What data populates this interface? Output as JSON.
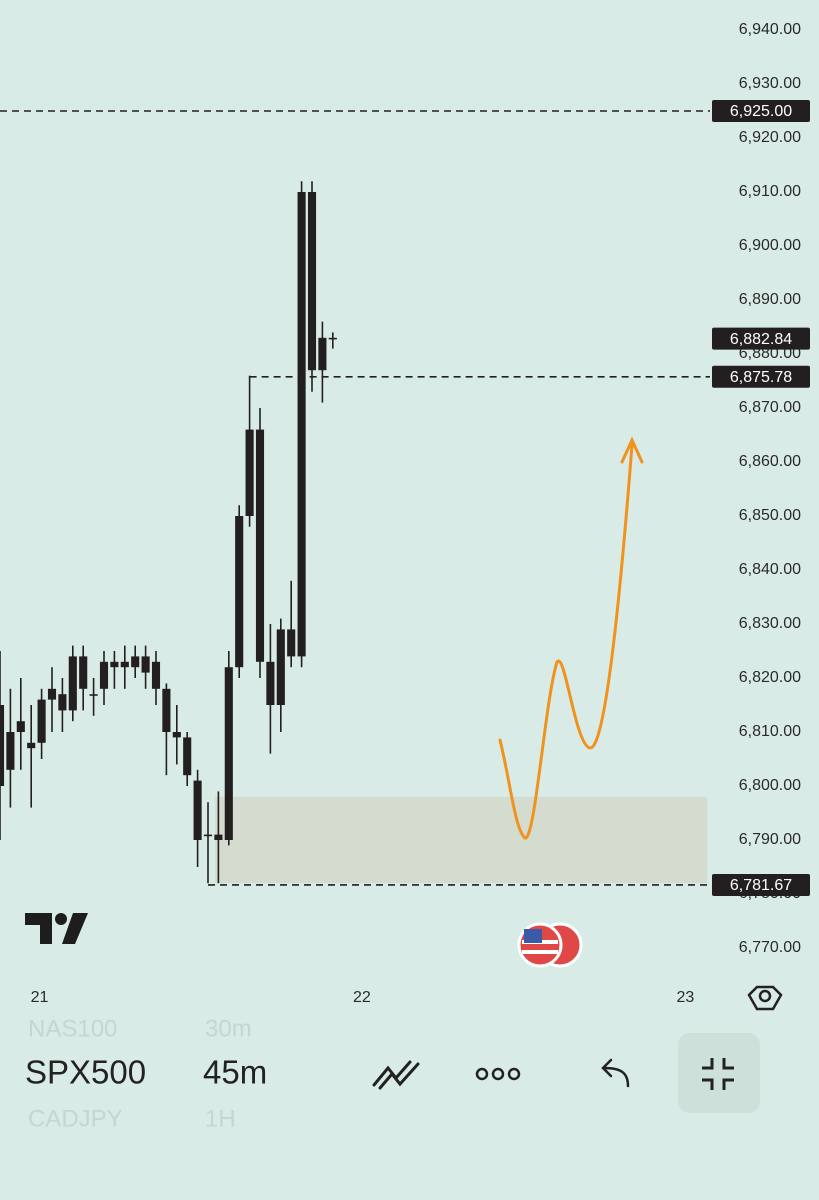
{
  "chart_data": {
    "type": "candlestick",
    "color": "#231f20",
    "x": [
      0,
      1,
      2,
      3,
      4,
      5,
      6,
      7,
      8,
      9,
      10,
      11,
      12,
      13,
      14,
      15,
      16,
      17,
      18,
      19,
      20,
      21,
      22,
      23,
      24,
      25,
      26,
      27,
      28,
      29,
      30,
      31,
      32
    ],
    "open": [
      6815,
      6803,
      6810,
      6807,
      6808,
      6816,
      6817,
      6814,
      6824,
      6817,
      6818,
      6822,
      6823,
      6822,
      6824,
      6823,
      6818,
      6810,
      6809,
      6801,
      6791,
      6791,
      6790,
      6822,
      6850,
      6866,
      6823,
      6815,
      6829,
      6824,
      6910,
      6877,
      6883
    ],
    "high": [
      6825,
      6818,
      6820,
      6815,
      6818,
      6822,
      6820,
      6826,
      6826,
      6820,
      6825,
      6825,
      6826,
      6826,
      6826,
      6825,
      6819,
      6815,
      6810,
      6803,
      6797,
      6799,
      6825,
      6852,
      6876,
      6870,
      6830,
      6831,
      6838,
      6912,
      6912,
      6886,
      6884
    ],
    "low": [
      6790,
      6796,
      6803,
      6796,
      6805,
      6810,
      6810,
      6812,
      6814,
      6813,
      6815,
      6818,
      6818,
      6820,
      6818,
      6815,
      6802,
      6804,
      6800,
      6785,
      6782,
      6782,
      6789,
      6820,
      6848,
      6820,
      6806,
      6810,
      6822,
      6822,
      6873,
      6871,
      6881
    ],
    "close": [
      6800,
      6810,
      6812,
      6808,
      6816,
      6818,
      6814,
      6824,
      6818,
      6817,
      6823,
      6823,
      6822,
      6824,
      6821,
      6818,
      6810,
      6809,
      6802,
      6790,
      6791,
      6790,
      6822,
      6850,
      6866,
      6823,
      6815,
      6829,
      6824,
      6910,
      6877,
      6883,
      6883
    ],
    "xlim": [
      0,
      78.75
    ],
    "xticks": [
      {
        "value": 3.8,
        "label": "21"
      },
      {
        "value": 34.8,
        "label": "22"
      },
      {
        "value": 65.9,
        "label": "23"
      }
    ],
    "ylim": [
      6770,
      6940
    ],
    "yticks": [
      {
        "value": 6770,
        "label": "6,770.00"
      },
      {
        "value": 6780,
        "label": "6,780.00"
      },
      {
        "value": 6790,
        "label": "6,790.00"
      },
      {
        "value": 6800,
        "label": "6,800.00"
      },
      {
        "value": 6810,
        "label": "6,810.00"
      },
      {
        "value": 6820,
        "label": "6,820.00"
      },
      {
        "value": 6830,
        "label": "6,830.00"
      },
      {
        "value": 6840,
        "label": "6,840.00"
      },
      {
        "value": 6850,
        "label": "6,850.00"
      },
      {
        "value": 6860,
        "label": "6,860.00"
      },
      {
        "value": 6870,
        "label": "6,870.00"
      },
      {
        "value": 6880,
        "label": "6,880.00"
      },
      {
        "value": 6890,
        "label": "6,890.00"
      },
      {
        "value": 6900,
        "label": "6,900.00"
      },
      {
        "value": 6910,
        "label": "6,910.00"
      },
      {
        "value": 6920,
        "label": "6,920.00"
      },
      {
        "value": 6930,
        "label": "6,930.00"
      },
      {
        "value": 6940,
        "label": "6,940.00"
      }
    ],
    "levels": [
      {
        "value": 6925,
        "label": "6,925.00",
        "from": 0,
        "line": true
      },
      {
        "value": 6882.84,
        "label": "6,882.84",
        "line": false
      },
      {
        "value": 6875.78,
        "label": "6,875.78",
        "from": 24,
        "line": true
      },
      {
        "value": 6781.67,
        "label": "6,781.67",
        "from": 20,
        "line": true
      }
    ],
    "zone": {
      "x": [
        20.7,
        68
      ],
      "y": [
        6782,
        6798
      ],
      "color": "#d3dccf"
    }
  },
  "toolbar": {
    "symbols": [
      "NAS100",
      "SPX500",
      "CADJPY"
    ],
    "intervals": [
      "30m",
      "45m",
      "1H"
    ]
  }
}
